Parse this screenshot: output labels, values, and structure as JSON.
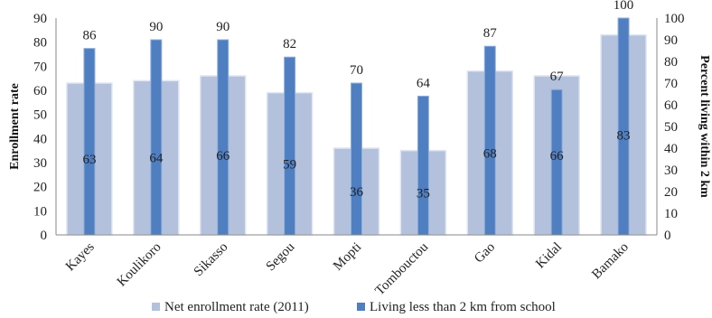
{
  "chart_data": {
    "type": "bar",
    "categories": [
      "Kayes",
      "Koulikoro",
      "Sikasso",
      "Segou",
      "Mopti",
      "Tombouctou",
      "Gao",
      "Kidal",
      "Bamako"
    ],
    "series": [
      {
        "name": "Net enrollment rate (2011)",
        "axis": "left",
        "values": [
          63,
          64,
          66,
          59,
          36,
          35,
          68,
          66,
          83
        ],
        "color": "#b4c1dc"
      },
      {
        "name": "Living less than 2 km from school",
        "axis": "right",
        "values": [
          86,
          90,
          90,
          82,
          70,
          64,
          87,
          67,
          100
        ],
        "color": "#4f7fc0"
      }
    ],
    "ylabel": "Enrollment rate",
    "y2label": "Percent living within 2 km",
    "ylim": [
      0,
      90
    ],
    "y2lim": [
      0,
      100
    ],
    "yticks": [
      "0",
      "10",
      "20",
      "30",
      "40",
      "50",
      "60",
      "70",
      "80",
      "90"
    ],
    "y2ticks": [
      "0",
      "10",
      "20",
      "30",
      "40",
      "50",
      "60",
      "70",
      "80",
      "90",
      "100"
    ],
    "legend_position": "bottom",
    "grid": false
  }
}
